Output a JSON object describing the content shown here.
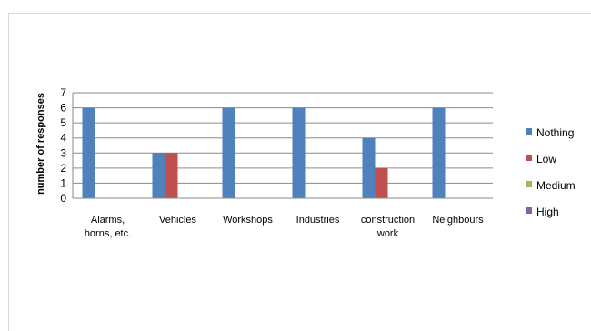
{
  "chart_data": {
    "type": "bar",
    "title": "",
    "xlabel": "",
    "ylabel": "number of responses",
    "ylim": [
      0,
      7
    ],
    "yticks": [
      0,
      1,
      2,
      3,
      4,
      5,
      6,
      7
    ],
    "grid": true,
    "legend_position": "right",
    "categories": [
      [
        "Alarms,",
        "horns, etc."
      ],
      [
        "Vehicles"
      ],
      [
        "Workshops"
      ],
      [
        "Industries"
      ],
      [
        "construction",
        "work"
      ],
      [
        "Neighbours"
      ]
    ],
    "series": [
      {
        "name": "Nothing",
        "color": "#4f81bd",
        "values": [
          6,
          3,
          6,
          6,
          4,
          6
        ]
      },
      {
        "name": "Low",
        "color": "#c0504d",
        "values": [
          0,
          3,
          0,
          0,
          2,
          0
        ]
      },
      {
        "name": "Medium",
        "color": "#9bbb59",
        "values": [
          0,
          0,
          0,
          0,
          0,
          0
        ]
      },
      {
        "name": "High",
        "color": "#8064a2",
        "values": [
          0,
          0,
          0,
          0,
          0,
          0
        ]
      }
    ]
  }
}
